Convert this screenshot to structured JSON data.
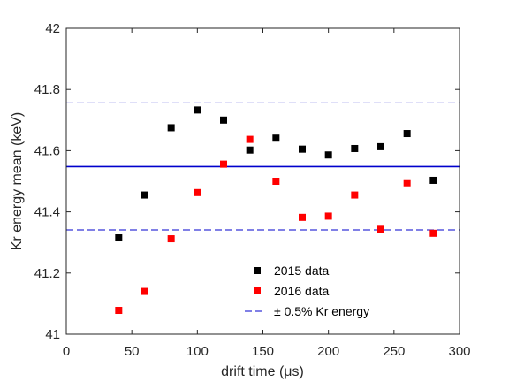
{
  "chart_data": {
    "type": "scatter",
    "xlabel": "drift time (μs)",
    "ylabel": "Kr energy mean (keV)",
    "xlim": [
      0,
      300
    ],
    "ylim": [
      41,
      42
    ],
    "xticks": [
      0,
      50,
      100,
      150,
      200,
      250,
      300
    ],
    "yticks": [
      41,
      41.2,
      41.4,
      41.6,
      41.8,
      42
    ],
    "xtick_labels": [
      "0",
      "50",
      "100",
      "150",
      "200",
      "250",
      "300"
    ],
    "ytick_labels": [
      "41",
      "41.2",
      "41.4",
      "41.6",
      "41.8",
      "42"
    ],
    "grid": false,
    "legend_position": "bottom-center",
    "series": [
      {
        "name": "2015 data",
        "color": "#000000",
        "marker": "square",
        "x": [
          40,
          60,
          80,
          100,
          120,
          140,
          160,
          180,
          200,
          220,
          240,
          260,
          280
        ],
        "y": [
          41.315,
          41.455,
          41.675,
          41.733,
          41.7,
          41.602,
          41.641,
          41.605,
          41.586,
          41.607,
          41.613,
          41.656,
          41.503
        ]
      },
      {
        "name": "2016 data",
        "color": "#ff0000",
        "marker": "square",
        "x": [
          40,
          60,
          80,
          100,
          120,
          140,
          160,
          180,
          200,
          220,
          240,
          260,
          280
        ],
        "y": [
          41.078,
          41.14,
          41.312,
          41.463,
          41.556,
          41.637,
          41.5,
          41.382,
          41.386,
          41.455,
          41.343,
          41.495,
          41.33
        ]
      }
    ],
    "reference_lines": [
      {
        "y": 41.548,
        "style": "solid",
        "color": "#0000cc"
      },
      {
        "y": 41.756,
        "style": "dashed",
        "color": "#0000cc"
      },
      {
        "y": 41.341,
        "style": "dashed",
        "color": "#0000cc"
      }
    ],
    "legend_entries": [
      "2015 data",
      "2016 data",
      "± 0.5% Kr energy"
    ]
  }
}
